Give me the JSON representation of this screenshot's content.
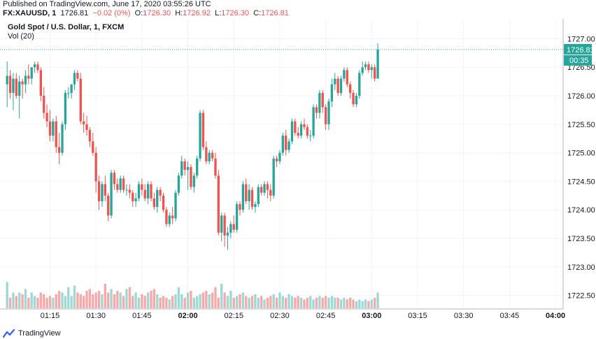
{
  "header": {
    "published": "Published on TradingView.com, June 17, 2020 03:55:26 UTC",
    "symbol": "FX:XAUUSD, 1",
    "last": "1726.81",
    "change": "−0.02 (0%)",
    "o_label": "O:",
    "o_value": "1726.30",
    "h_label": "H:",
    "h_value": "1726.92",
    "l_label": "L:",
    "l_value": "1726.30",
    "c_label": "C:",
    "c_value": "1726.81"
  },
  "legend": {
    "title": "Gold Spot / U.S. Dollar, 1, FXCM",
    "volume": "Vol (20)"
  },
  "footer": {
    "brand": "TradingView",
    "icon": "tradingview-logo-icon"
  },
  "colors": {
    "up": "#26a69a",
    "down": "#ef5350",
    "up_vol": "#9fd8d3",
    "down_vol": "#f6a9a8",
    "grid": "#f0f3fa",
    "axis_text": "#131722"
  },
  "chart_data": {
    "type": "candlestick",
    "y_ticks": [
      "1727.00",
      "1726.50",
      "1726.00",
      "1725.50",
      "1725.00",
      "1724.50",
      "1724.00",
      "1723.50",
      "1723.00",
      "1722.50"
    ],
    "ylim": [
      1722.25,
      1727.25
    ],
    "x_ticks": [
      "01:15",
      "01:30",
      "01:45",
      "02:00",
      "02:15",
      "02:30",
      "02:45",
      "03:00",
      "03:15",
      "03:30",
      "03:45",
      "04:00"
    ],
    "x_tick_minutes": [
      75,
      90,
      105,
      120,
      135,
      150,
      165,
      180,
      195,
      210,
      225,
      240
    ],
    "first_bar_minute": 61,
    "last_price_label": "1726.81",
    "countdown_label": "00:35",
    "last_price": 1726.81,
    "open": [
      1726.2,
      1726.35,
      1726.05,
      1726.3,
      1726.0,
      1726.25,
      1726.2,
      1726.35,
      1726.3,
      1726.5,
      1726.55,
      1726.45,
      1726.0,
      1725.7,
      1725.55,
      1725.3,
      1725.55,
      1725.1,
      1725.0,
      1725.5,
      1726.05,
      1726.05,
      1726.2,
      1726.4,
      1726.3,
      1725.55,
      1725.5,
      1725.4,
      1725.2,
      1725.0,
      1724.5,
      1724.15,
      1724.45,
      1724.25,
      1723.9,
      1724.65,
      1724.45,
      1724.35,
      1724.55,
      1724.35,
      1724.35,
      1724.3,
      1724.15,
      1724.2,
      1724.45,
      1724.35,
      1724.2,
      1724.45,
      1724.2,
      1724.05,
      1724.35,
      1724.25,
      1724.0,
      1723.75,
      1723.9,
      1723.85,
      1724.3,
      1724.6,
      1724.85,
      1724.7,
      1724.75,
      1724.4,
      1724.6,
      1724.9,
      1725.7,
      1725.1,
      1724.85,
      1725.0,
      1724.9,
      1724.6,
      1723.6,
      1723.9,
      1723.55,
      1723.6,
      1723.75,
      1723.65,
      1724.1,
      1724.0,
      1724.45,
      1724.15,
      1724.35,
      1724.05,
      1724.1,
      1724.4,
      1724.3,
      1724.45,
      1724.35,
      1724.25,
      1724.9,
      1724.85,
      1725.0,
      1725.3,
      1725.05,
      1725.2,
      1725.55,
      1725.35,
      1725.3,
      1725.5,
      1725.45,
      1725.3,
      1725.3,
      1725.8,
      1725.7,
      1726.05,
      1725.8,
      1725.5,
      1725.9,
      1726.2,
      1726.3,
      1726.05,
      1726.3,
      1726.45,
      1726.2,
      1726.05,
      1725.85,
      1726.0,
      1726.4,
      1726.5,
      1726.55,
      1726.45,
      1726.5,
      1726.3
    ],
    "high": [
      1726.6,
      1726.45,
      1726.4,
      1726.4,
      1726.35,
      1726.3,
      1726.45,
      1726.55,
      1726.45,
      1726.6,
      1726.6,
      1726.5,
      1726.15,
      1725.85,
      1725.75,
      1725.6,
      1725.65,
      1725.35,
      1725.55,
      1726.1,
      1726.15,
      1726.2,
      1726.45,
      1726.45,
      1726.4,
      1725.7,
      1725.65,
      1725.45,
      1725.35,
      1725.1,
      1724.6,
      1724.5,
      1724.6,
      1724.3,
      1724.7,
      1724.7,
      1724.55,
      1724.6,
      1724.6,
      1724.45,
      1724.45,
      1724.35,
      1724.3,
      1724.5,
      1724.55,
      1724.45,
      1724.5,
      1724.5,
      1724.3,
      1724.4,
      1724.4,
      1724.3,
      1724.05,
      1723.95,
      1724.05,
      1724.35,
      1724.65,
      1724.95,
      1724.9,
      1724.85,
      1724.8,
      1724.65,
      1724.95,
      1725.75,
      1725.75,
      1725.2,
      1725.05,
      1725.05,
      1725.0,
      1724.7,
      1723.95,
      1723.95,
      1723.7,
      1723.8,
      1723.9,
      1724.15,
      1724.15,
      1724.5,
      1724.55,
      1724.45,
      1724.4,
      1724.15,
      1724.45,
      1724.45,
      1724.5,
      1724.5,
      1724.45,
      1724.95,
      1724.95,
      1725.05,
      1725.35,
      1725.4,
      1725.25,
      1725.6,
      1725.6,
      1725.45,
      1725.55,
      1725.6,
      1725.5,
      1725.4,
      1725.85,
      1725.85,
      1726.1,
      1726.1,
      1725.85,
      1725.95,
      1726.3,
      1726.4,
      1726.35,
      1726.35,
      1726.5,
      1726.5,
      1726.25,
      1726.1,
      1726.05,
      1726.45,
      1726.6,
      1726.6,
      1726.6,
      1726.55,
      1726.55,
      1726.92
    ],
    "low": [
      1725.8,
      1725.95,
      1725.75,
      1725.95,
      1725.6,
      1725.95,
      1726.05,
      1726.2,
      1726.2,
      1726.4,
      1726.4,
      1725.9,
      1725.6,
      1725.45,
      1725.2,
      1725.2,
      1725.0,
      1724.8,
      1724.95,
      1725.4,
      1725.95,
      1725.95,
      1726.1,
      1726.25,
      1725.5,
      1725.35,
      1725.3,
      1725.1,
      1724.95,
      1724.3,
      1724.0,
      1724.05,
      1724.15,
      1723.8,
      1723.85,
      1724.35,
      1724.3,
      1724.3,
      1724.3,
      1724.25,
      1724.2,
      1724.05,
      1724.05,
      1724.15,
      1724.25,
      1724.15,
      1724.1,
      1724.15,
      1724.0,
      1723.95,
      1724.15,
      1723.95,
      1723.7,
      1723.7,
      1723.75,
      1723.8,
      1724.25,
      1724.55,
      1724.6,
      1724.35,
      1724.35,
      1724.3,
      1724.55,
      1724.85,
      1725.05,
      1724.8,
      1724.8,
      1724.85,
      1724.55,
      1723.55,
      1723.45,
      1723.35,
      1723.3,
      1723.5,
      1723.6,
      1723.6,
      1723.9,
      1723.95,
      1724.1,
      1724.0,
      1724.0,
      1723.95,
      1724.05,
      1724.25,
      1724.25,
      1724.2,
      1724.15,
      1724.2,
      1724.75,
      1724.8,
      1724.95,
      1724.95,
      1725.0,
      1725.15,
      1725.3,
      1725.25,
      1725.25,
      1725.4,
      1725.25,
      1725.2,
      1725.25,
      1725.6,
      1725.6,
      1725.7,
      1725.4,
      1725.4,
      1725.8,
      1726.1,
      1726.0,
      1726.0,
      1726.25,
      1726.15,
      1725.95,
      1725.8,
      1725.8,
      1725.95,
      1726.35,
      1726.45,
      1726.4,
      1726.3,
      1726.25,
      1726.3
    ],
    "close": [
      1726.35,
      1726.05,
      1726.3,
      1726.0,
      1726.25,
      1726.2,
      1726.35,
      1726.3,
      1726.5,
      1726.55,
      1726.45,
      1726.0,
      1725.7,
      1725.55,
      1725.3,
      1725.55,
      1725.1,
      1725.0,
      1725.5,
      1726.05,
      1726.05,
      1726.2,
      1726.4,
      1726.3,
      1725.55,
      1725.5,
      1725.4,
      1725.2,
      1725.0,
      1724.5,
      1724.15,
      1724.45,
      1724.25,
      1723.9,
      1724.65,
      1724.45,
      1724.35,
      1724.55,
      1724.35,
      1724.35,
      1724.3,
      1724.15,
      1724.2,
      1724.45,
      1724.35,
      1724.2,
      1724.45,
      1724.2,
      1724.05,
      1724.35,
      1724.25,
      1724.0,
      1723.75,
      1723.9,
      1723.85,
      1724.3,
      1724.6,
      1724.85,
      1724.7,
      1724.75,
      1724.4,
      1724.6,
      1724.9,
      1725.7,
      1725.1,
      1724.85,
      1725.0,
      1724.9,
      1724.6,
      1723.6,
      1723.9,
      1723.55,
      1723.6,
      1723.75,
      1723.65,
      1724.1,
      1724.0,
      1724.45,
      1724.15,
      1724.35,
      1724.05,
      1724.1,
      1724.4,
      1724.3,
      1724.45,
      1724.35,
      1724.25,
      1724.9,
      1724.85,
      1725.0,
      1725.3,
      1725.05,
      1725.2,
      1725.55,
      1725.35,
      1725.3,
      1725.5,
      1725.45,
      1725.3,
      1725.3,
      1725.8,
      1725.7,
      1726.05,
      1725.8,
      1725.5,
      1725.9,
      1726.2,
      1726.3,
      1726.05,
      1726.3,
      1726.45,
      1726.2,
      1726.05,
      1725.85,
      1726.0,
      1726.4,
      1726.5,
      1726.55,
      1726.45,
      1726.5,
      1726.3,
      1726.81
    ],
    "volume": [
      0.75,
      0.3,
      0.45,
      0.35,
      0.45,
      0.4,
      0.55,
      0.3,
      0.45,
      0.35,
      0.3,
      0.45,
      0.4,
      0.3,
      0.35,
      0.3,
      0.4,
      0.5,
      0.45,
      0.35,
      0.6,
      0.35,
      0.65,
      0.45,
      0.4,
      0.35,
      0.5,
      0.55,
      0.4,
      0.45,
      0.5,
      0.4,
      0.7,
      0.45,
      0.55,
      0.4,
      0.5,
      0.45,
      0.35,
      0.55,
      0.6,
      0.35,
      0.45,
      0.3,
      0.4,
      0.35,
      0.45,
      0.5,
      0.55,
      0.4,
      0.3,
      0.35,
      0.3,
      0.25,
      0.35,
      0.4,
      0.6,
      0.4,
      0.3,
      0.45,
      0.5,
      0.3,
      0.35,
      0.4,
      0.45,
      0.5,
      0.4,
      0.45,
      0.6,
      0.3,
      0.7,
      0.45,
      0.35,
      0.5,
      0.3,
      0.35,
      0.4,
      0.45,
      0.35,
      0.3,
      0.35,
      0.4,
      0.3,
      0.35,
      0.25,
      0.3,
      0.35,
      0.4,
      0.3,
      0.45,
      0.35,
      0.3,
      0.4,
      0.35,
      0.3,
      0.35,
      0.3,
      0.25,
      0.3,
      0.35,
      0.25,
      0.3,
      0.35,
      0.3,
      0.35,
      0.3,
      0.35,
      0.3,
      0.3,
      0.25,
      0.3,
      0.25,
      0.3,
      0.25,
      0.2,
      0.25,
      0.2,
      0.25,
      0.2,
      0.25,
      0.3,
      0.45
    ]
  }
}
